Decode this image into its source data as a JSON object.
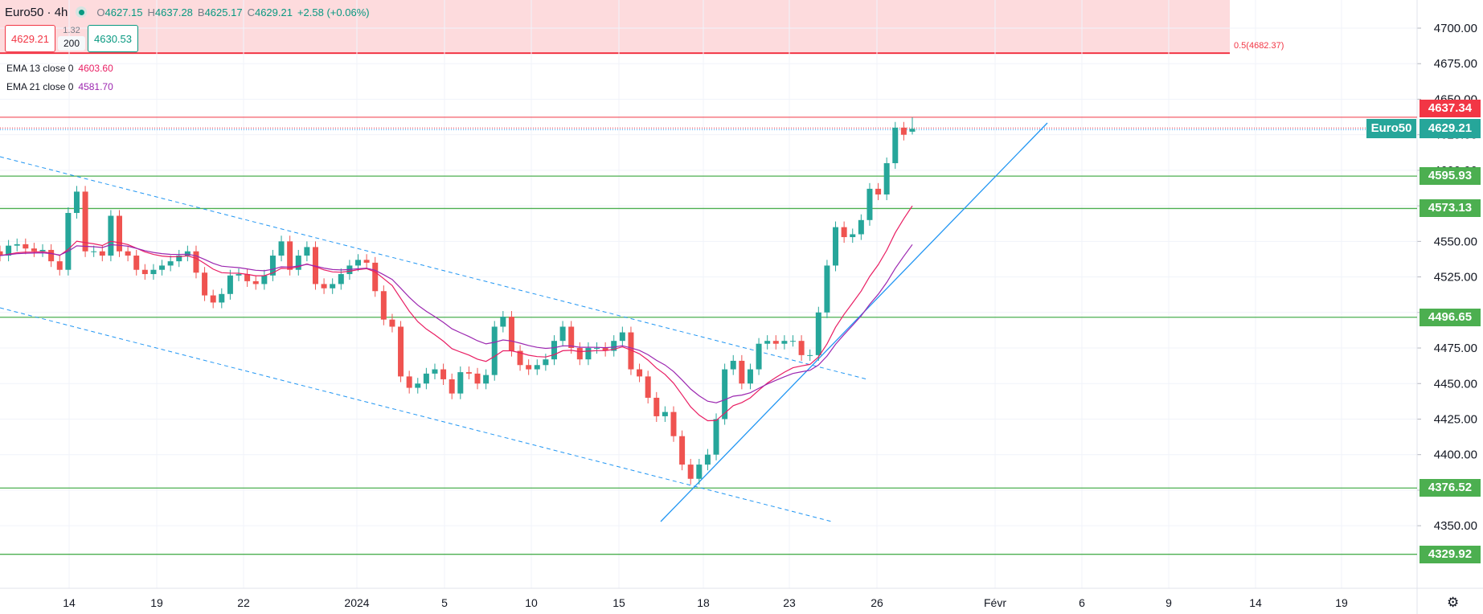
{
  "header": {
    "symbol": "Euro50 · 4h",
    "status_color": "#089981",
    "open_label": "O",
    "open": "4627.15",
    "high_label": "H",
    "high": "4637.28",
    "low_label": "B",
    "low": "4625.17",
    "close_label": "C",
    "close": "4629.21",
    "change": "+2.58 (+0.06%)"
  },
  "trade_panel": {
    "sell_price": "4629.21",
    "spread": "1.32",
    "quantity": "200",
    "buy_price": "4630.53"
  },
  "indicators": [
    {
      "label": "EMA 13 close 0",
      "value": "4603.60",
      "color": "#e91e63",
      "period": 13
    },
    {
      "label": "EMA 21 close 0",
      "value": "4581.70",
      "color": "#9c27b0",
      "period": 21
    }
  ],
  "fib_zone": {
    "label": "0.5(4682.37)",
    "level": 4682.37,
    "color": "#f23645"
  },
  "price_badges": {
    "high_line": {
      "value": "4637.34",
      "price": 4637.34,
      "color": "#f23645"
    },
    "last": {
      "symbol": "Euro50",
      "value": "4629.21",
      "price": 4629.21,
      "color": "#26a69a"
    }
  },
  "horizontal_levels": [
    {
      "value": "4595.93",
      "price": 4595.93
    },
    {
      "value": "4573.13",
      "price": 4573.13
    },
    {
      "value": "4496.65",
      "price": 4496.65
    },
    {
      "value": "4376.52",
      "price": 4376.52
    },
    {
      "value": "4329.92",
      "price": 4329.92
    }
  ],
  "level_color": "#4caf50",
  "footer": {
    "settings_icon": "gear-icon",
    "settings_glyph": "⚙"
  },
  "chart_data": {
    "type": "candlestick",
    "interval": "4h",
    "up_color": "#26a69a",
    "down_color": "#ef5350",
    "trendline_color": "#2196f3",
    "x_tick_labels": [
      "14",
      "19",
      "22",
      "2024",
      "5",
      "10",
      "15",
      "18",
      "23",
      "26",
      "Févr",
      "6",
      "9",
      "14",
      "19"
    ],
    "y_ticks": [
      4350,
      4375,
      4400,
      4425,
      4450,
      4475,
      4500,
      4525,
      4550,
      4575,
      4600,
      4625,
      4650,
      4675,
      4700
    ],
    "y_tick_labels": [
      "4350.00",
      "4375.00",
      "4400.00",
      "4425.00",
      "4450.00",
      "4475.00",
      "4500.00",
      "4525.00",
      "4550.00",
      "4575.00",
      "4600.00",
      "4625.00",
      "4650.00",
      "4675.00",
      "4700.00"
    ],
    "ylim": [
      4315,
      4720
    ],
    "grid": true,
    "closes": [
      4540,
      4547,
      4548,
      4545,
      4543,
      4544,
      4536,
      4530,
      4570,
      4585,
      4543,
      4543,
      4540,
      4568,
      4543,
      4540,
      4530,
      4527,
      4530,
      4533,
      4536,
      4540,
      4543,
      4528,
      4512,
      4507,
      4513,
      4526,
      4527,
      4522,
      4520,
      4526,
      4540,
      4550,
      4530,
      4540,
      4546,
      4520,
      4517,
      4520,
      4527,
      4533,
      4537,
      4535,
      4515,
      4495,
      4490,
      4455,
      4447,
      4450,
      4457,
      4460,
      4453,
      4443,
      4458,
      4457,
      4450,
      4456,
      4490,
      4497,
      4473,
      4463,
      4460,
      4463,
      4467,
      4480,
      4490,
      4475,
      4467,
      4475,
      4475,
      4473,
      4480,
      4486,
      4460,
      4455,
      4440,
      4427,
      4430,
      4413,
      4393,
      4383,
      4393,
      4400,
      4425,
      4460,
      4466,
      4450,
      4460,
      4478,
      4480,
      4478,
      4480,
      4480,
      4470,
      4470,
      4500,
      4533,
      4560,
      4553,
      4555,
      4565,
      4587,
      4583,
      4605,
      4630,
      4625,
      4629.21
    ],
    "last_candle": {
      "open": 4627.15,
      "high": 4637.28,
      "low": 4625.17,
      "close": 4629.21
    }
  }
}
